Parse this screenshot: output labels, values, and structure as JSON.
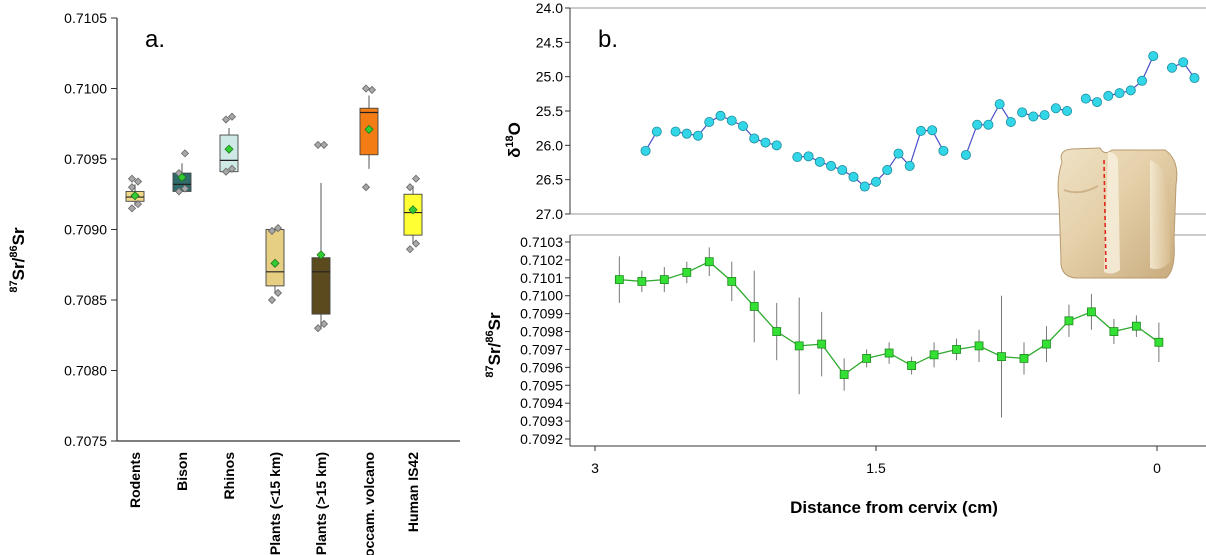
{
  "colors": {
    "rodents": "#f2d98a",
    "bison": "#2f6b6b",
    "rhinos": "#cfe9e6",
    "plants_near": "#e6cf82",
    "plants_far": "#5b4a1e",
    "roccam": "#f47c14",
    "human": "#ffff33",
    "mean_marker": "#33cc33",
    "outlier": "#a8a8a8",
    "o18_point": "#33d6e6",
    "o18_line": "#4a50c8",
    "sr_point": "#33e033",
    "sr_line": "#2eaa2e"
  },
  "chart_data": [
    {
      "type": "box",
      "panel_label": "a.",
      "ylabel_prefix": "87",
      "ylabel_mid": "Sr/",
      "ylabel_sup2": "86",
      "ylabel_end": "Sr",
      "ylim": [
        0.7075,
        0.7105
      ],
      "yticks": [
        "0.7075",
        "0.7080",
        "0.7085",
        "0.7090",
        "0.7095",
        "0.7100",
        "0.7105"
      ],
      "categories": [
        "Rodents",
        "Bison",
        "Rhinos",
        "Plants (<15 km)",
        "Plants (>15 km)",
        "Roccam. volcano",
        "Human IS42"
      ],
      "boxes": [
        {
          "q1": 0.7092,
          "median": 0.70923,
          "q3": 0.70927,
          "whisker_low": 0.70917,
          "whisker_high": 0.70932,
          "mean": 0.70924,
          "outliers": [
            0.70915,
            0.70918,
            0.7093,
            0.70934,
            0.70936
          ]
        },
        {
          "q1": 0.70927,
          "median": 0.70932,
          "q3": 0.7094,
          "whisker_low": 0.70927,
          "whisker_high": 0.70947,
          "mean": 0.70937,
          "outliers": [
            0.70927,
            0.70929,
            0.7094,
            0.70954
          ]
        },
        {
          "q1": 0.70941,
          "median": 0.70949,
          "q3": 0.70967,
          "whisker_low": 0.70941,
          "whisker_high": 0.70972,
          "mean": 0.70957,
          "outliers": [
            0.70941,
            0.70943,
            0.70978,
            0.7098
          ]
        },
        {
          "q1": 0.7086,
          "median": 0.7087,
          "q3": 0.709,
          "whisker_low": 0.70855,
          "whisker_high": 0.709,
          "mean": 0.70876,
          "outliers": [
            0.7085,
            0.70855,
            0.70899,
            0.70901
          ]
        },
        {
          "q1": 0.7084,
          "median": 0.7087,
          "q3": 0.7088,
          "whisker_low": 0.7083,
          "whisker_high": 0.70933,
          "mean": 0.70882,
          "outliers": [
            0.7083,
            0.70833,
            0.7096,
            0.7096
          ]
        },
        {
          "q1": 0.70953,
          "median": 0.70983,
          "q3": 0.70986,
          "whisker_low": 0.70943,
          "whisker_high": 0.70995,
          "mean": 0.70971,
          "outliers": [
            0.7093,
            0.70999,
            0.71
          ]
        },
        {
          "q1": 0.70896,
          "median": 0.70912,
          "q3": 0.70925,
          "whisker_low": 0.7089,
          "whisker_high": 0.70931,
          "mean": 0.70914,
          "outliers": [
            0.70886,
            0.7089,
            0.7093,
            0.70936
          ]
        }
      ]
    },
    {
      "type": "scatter",
      "panel_label": "b.",
      "ylabel_base": "δ",
      "ylabel_sup": "18",
      "ylabel_end": "O",
      "ylim": [
        24.0,
        27.0
      ],
      "y_reversed": true,
      "yticks": [
        "24.0",
        "24.5",
        "25.0",
        "25.5",
        "26.0",
        "26.5",
        "27.0"
      ],
      "segments": [
        [
          [
            2.73,
            26.08
          ],
          [
            2.67,
            25.8
          ]
        ],
        [
          [
            2.57,
            25.8
          ],
          [
            2.51,
            25.83
          ],
          [
            2.45,
            25.86
          ],
          [
            2.39,
            25.66
          ],
          [
            2.33,
            25.57
          ],
          [
            2.27,
            25.64
          ],
          [
            2.21,
            25.72
          ],
          [
            2.15,
            25.9
          ],
          [
            2.09,
            25.96
          ],
          [
            2.03,
            26.0
          ]
        ],
        [
          [
            1.92,
            26.17
          ],
          [
            1.86,
            26.16
          ],
          [
            1.8,
            26.24
          ],
          [
            1.74,
            26.3
          ],
          [
            1.68,
            26.36
          ],
          [
            1.62,
            26.46
          ],
          [
            1.56,
            26.6
          ],
          [
            1.5,
            26.53
          ],
          [
            1.44,
            26.36
          ],
          [
            1.38,
            26.12
          ],
          [
            1.32,
            26.3
          ],
          [
            1.26,
            25.79
          ],
          [
            1.2,
            25.78
          ],
          [
            1.14,
            26.08
          ]
        ],
        [
          [
            1.02,
            26.14
          ],
          [
            0.96,
            25.7
          ],
          [
            0.9,
            25.7
          ],
          [
            0.84,
            25.4
          ],
          [
            0.78,
            25.66
          ]
        ],
        [
          [
            0.72,
            25.52
          ],
          [
            0.66,
            25.58
          ],
          [
            0.6,
            25.56
          ]
        ],
        [
          [
            0.54,
            25.46
          ],
          [
            0.48,
            25.5
          ]
        ],
        [
          [
            0.38,
            25.32
          ],
          [
            0.32,
            25.37
          ]
        ],
        [
          [
            0.26,
            25.28
          ],
          [
            0.2,
            25.24
          ],
          [
            0.14,
            25.2
          ],
          [
            0.08,
            25.06
          ],
          [
            0.02,
            24.7
          ]
        ],
        [
          [
            -0.08,
            24.87
          ],
          [
            -0.14,
            24.79
          ],
          [
            -0.2,
            25.02
          ]
        ],
        [
          [
            -0.32,
            24.66
          ]
        ]
      ]
    },
    {
      "type": "line",
      "ylabel_prefix": "87",
      "ylabel_mid": "Sr/",
      "ylabel_sup2": "86",
      "ylabel_end": "Sr",
      "xlabel": "Distance from cervix (cm)",
      "xlim": [
        3.0,
        0.0
      ],
      "xticks": [
        "3",
        "1.5",
        "0"
      ],
      "ylim": [
        0.7092,
        0.7103
      ],
      "yticks": [
        "0.7092",
        "0.7093",
        "0.7094",
        "0.7095",
        "0.7096",
        "0.7097",
        "0.7098",
        "0.7099",
        "0.7100",
        "0.7101",
        "0.7102",
        "0.7103"
      ],
      "points": [
        {
          "x": 2.87,
          "y": 0.71009,
          "err": 0.00013
        },
        {
          "x": 2.75,
          "y": 0.71008,
          "err": 6e-05
        },
        {
          "x": 2.63,
          "y": 0.71009,
          "err": 7e-05
        },
        {
          "x": 2.51,
          "y": 0.71013,
          "err": 6e-05
        },
        {
          "x": 2.39,
          "y": 0.71019,
          "err": 8e-05
        },
        {
          "x": 2.27,
          "y": 0.71008,
          "err": 0.00011
        },
        {
          "x": 2.15,
          "y": 0.70994,
          "err": 0.0002
        },
        {
          "x": 2.03,
          "y": 0.7098,
          "err": 0.00016
        },
        {
          "x": 1.91,
          "y": 0.70972,
          "err": 0.00027
        },
        {
          "x": 1.79,
          "y": 0.70973,
          "err": 0.00018
        },
        {
          "x": 1.67,
          "y": 0.70956,
          "err": 9e-05
        },
        {
          "x": 1.55,
          "y": 0.70965,
          "err": 5e-05
        },
        {
          "x": 1.43,
          "y": 0.70968,
          "err": 6e-05
        },
        {
          "x": 1.31,
          "y": 0.70961,
          "err": 5e-05
        },
        {
          "x": 1.19,
          "y": 0.70967,
          "err": 7e-05
        },
        {
          "x": 1.07,
          "y": 0.7097,
          "err": 6e-05
        },
        {
          "x": 0.95,
          "y": 0.70972,
          "err": 9e-05
        },
        {
          "x": 0.83,
          "y": 0.70966,
          "err": 0.00034
        },
        {
          "x": 0.71,
          "y": 0.70965,
          "err": 9e-05
        },
        {
          "x": 0.59,
          "y": 0.70973,
          "err": 0.0001
        },
        {
          "x": 0.47,
          "y": 0.70986,
          "err": 9e-05
        },
        {
          "x": 0.35,
          "y": 0.70991,
          "err": 0.0001
        },
        {
          "x": 0.23,
          "y": 0.7098,
          "err": 7e-05
        },
        {
          "x": 0.11,
          "y": 0.70983,
          "err": 6e-05
        },
        {
          "x": -0.01,
          "y": 0.70974,
          "err": 0.00011
        }
      ]
    }
  ]
}
